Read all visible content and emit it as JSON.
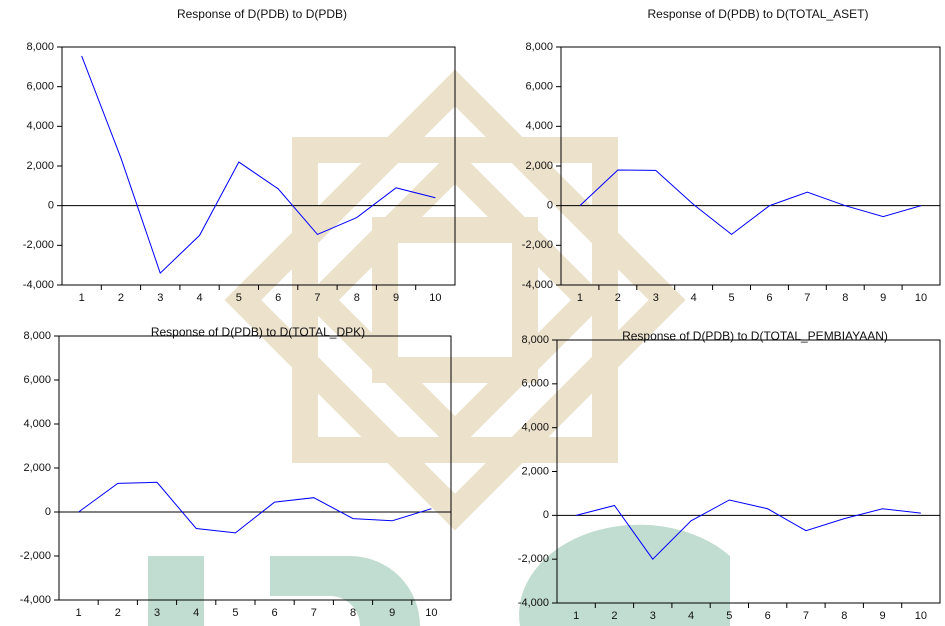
{
  "chart_data": [
    {
      "type": "line",
      "title": "Response of D(PDB) to D(PDB)",
      "categories": [
        "1",
        "2",
        "3",
        "4",
        "5",
        "6",
        "7",
        "8",
        "9",
        "10"
      ],
      "series": [
        {
          "color": "#0000ff",
          "values": [
            7550,
            2400,
            -3400,
            -1500,
            2200,
            850,
            -1450,
            -600,
            900,
            400
          ]
        }
      ],
      "ylim": [
        -4000,
        8000
      ],
      "yticks": [
        {
          "value": -4000,
          "label": "-4,000"
        },
        {
          "value": -2000,
          "label": "-2,000"
        },
        0,
        {
          "value": 2000,
          "label": "2,000"
        },
        {
          "value": 4000,
          "label": "4,000"
        },
        {
          "value": 6000,
          "label": "6,000"
        },
        {
          "value": 8000,
          "label": "8,000"
        }
      ]
    },
    {
      "type": "line",
      "title": "Response of D(PDB) to D(TOTAL_ASET)",
      "categories": [
        "1",
        "2",
        "3",
        "4",
        "5",
        "6",
        "7",
        "8",
        "9",
        "10"
      ],
      "series": [
        {
          "color": "#0000ff",
          "values": [
            0,
            1800,
            1780,
            50,
            -1450,
            0,
            680,
            0,
            -550,
            0
          ]
        }
      ],
      "ylim": [
        -4000,
        8000
      ],
      "yticks": [
        {
          "value": -4000,
          "label": "-4,000"
        },
        {
          "value": -2000,
          "label": "-2,000"
        },
        0,
        {
          "value": 2000,
          "label": "2,000"
        },
        {
          "value": 4000,
          "label": "4,000"
        },
        {
          "value": 6000,
          "label": "6,000"
        },
        {
          "value": 8000,
          "label": "8,000"
        }
      ]
    },
    {
      "type": "line",
      "title": "Response of D(PDB) to D(TOTAL_DPK)",
      "categories": [
        "1",
        "2",
        "3",
        "4",
        "5",
        "6",
        "7",
        "8",
        "9",
        "10"
      ],
      "series": [
        {
          "color": "#0000ff",
          "values": [
            0,
            1300,
            1350,
            -750,
            -950,
            450,
            650,
            -300,
            -400,
            150
          ]
        }
      ],
      "ylim": [
        -4000,
        8000
      ],
      "yticks": [
        {
          "value": -4000,
          "label": "-4,000"
        },
        {
          "value": -2000,
          "label": "-2,000"
        },
        0,
        {
          "value": 2000,
          "label": "2,000"
        },
        {
          "value": 4000,
          "label": "4,000"
        },
        {
          "value": 6000,
          "label": "6,000"
        },
        {
          "value": 8000,
          "label": "8,000"
        }
      ]
    },
    {
      "type": "line",
      "title": "Response of D(PDB) to D(TOTAL_PEMBIAYAAN)",
      "categories": [
        "1",
        "2",
        "3",
        "4",
        "5",
        "6",
        "7",
        "8",
        "9",
        "10"
      ],
      "series": [
        {
          "color": "#0000ff",
          "values": [
            0,
            450,
            -2000,
            -250,
            700,
            300,
            -700,
            -150,
            300,
            100
          ]
        }
      ],
      "ylim": [
        -4000,
        8000
      ],
      "yticks": [
        {
          "value": -4000,
          "label": "-4,000"
        },
        {
          "value": -2000,
          "label": "-2,000"
        },
        0,
        {
          "value": 2000,
          "label": "2,000"
        },
        {
          "value": 4000,
          "label": "4,000"
        },
        {
          "value": 6000,
          "label": "6,000"
        },
        {
          "value": 8000,
          "label": "8,000"
        }
      ]
    }
  ]
}
